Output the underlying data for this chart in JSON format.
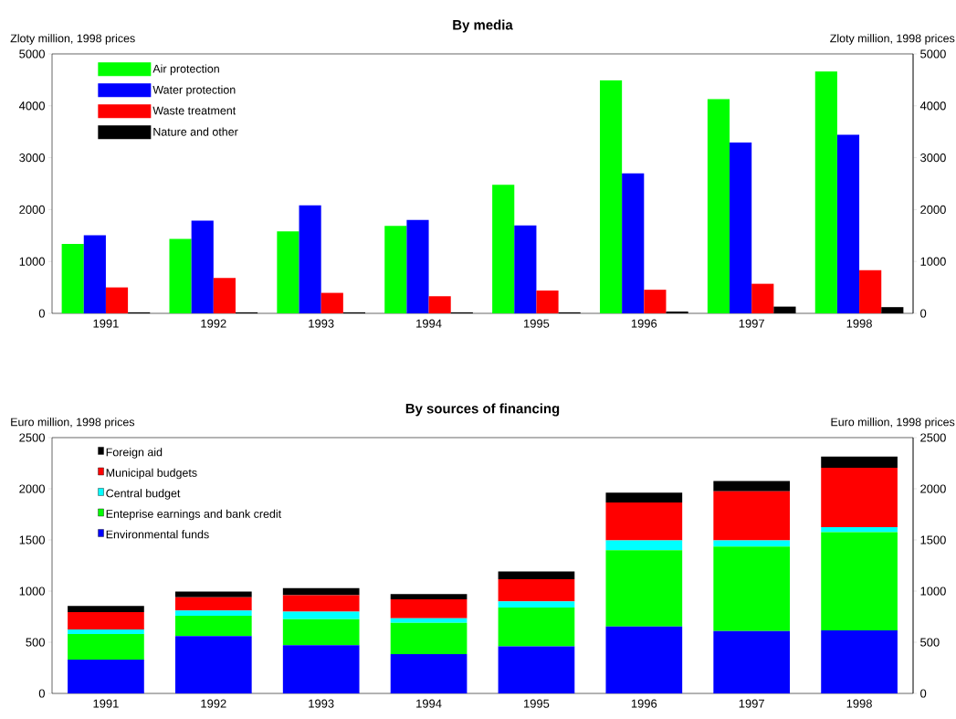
{
  "chart_data": [
    {
      "type": "bar",
      "title": "By media",
      "ylabel": "Zloty million, 1998 prices",
      "y2label": "Zloty million, 1998 prices",
      "categories": [
        "1991",
        "1992",
        "1993",
        "1994",
        "1995",
        "1996",
        "1997",
        "1998"
      ],
      "series": [
        {
          "name": "Air protection",
          "color": "#00ff00",
          "values": [
            1340,
            1435,
            1580,
            1685,
            2480,
            4490,
            4130,
            4660
          ]
        },
        {
          "name": "Water protection",
          "color": "#0000ff",
          "values": [
            1505,
            1785,
            2080,
            1800,
            1695,
            2700,
            3290,
            3440
          ]
        },
        {
          "name": "Waste treatment",
          "color": "#ff0000",
          "values": [
            500,
            680,
            395,
            330,
            440,
            455,
            570,
            830
          ]
        },
        {
          "name": "Nature and other",
          "color": "#000000",
          "values": [
            20,
            20,
            20,
            20,
            20,
            35,
            130,
            120
          ]
        }
      ],
      "ylim": [
        0,
        5000
      ],
      "yticks": [
        0,
        1000,
        2000,
        3000,
        4000,
        5000
      ],
      "y2lim": [
        0,
        5000
      ],
      "y2ticks": [
        0,
        1000,
        2000,
        3000,
        4000,
        5000
      ],
      "legend": "top left"
    },
    {
      "type": "bar",
      "stacked": true,
      "title": "By sources of financing",
      "ylabel": "Euro million, 1998 prices",
      "y2label": "Euro million, 1998 prices",
      "categories": [
        "1991",
        "1992",
        "1993",
        "1994",
        "1995",
        "1996",
        "1997",
        "1998"
      ],
      "series": [
        {
          "name": "Environmental funds",
          "color": "#0000ff",
          "values": [
            330,
            560,
            470,
            385,
            460,
            655,
            610,
            615
          ]
        },
        {
          "name": "Enteprise earnings and bank credit",
          "color": "#00ff00",
          "values": [
            250,
            200,
            255,
            305,
            380,
            745,
            825,
            960
          ]
        },
        {
          "name": "Central budget",
          "color": "#00ffff",
          "values": [
            45,
            50,
            75,
            45,
            60,
            95,
            60,
            50
          ]
        },
        {
          "name": "Municipal budgets",
          "color": "#ff0000",
          "values": [
            170,
            130,
            160,
            185,
            215,
            370,
            480,
            580
          ]
        },
        {
          "name": "Foreign aid",
          "color": "#000000",
          "values": [
            60,
            56,
            70,
            52,
            77,
            97,
            100,
            110
          ]
        }
      ],
      "ylim": [
        0,
        2500
      ],
      "yticks": [
        0,
        500,
        1000,
        1500,
        2000,
        2500
      ],
      "y2lim": [
        0,
        2500
      ],
      "y2ticks": [
        0,
        500,
        1000,
        1500,
        2000,
        2500
      ],
      "legend": "top left"
    }
  ]
}
